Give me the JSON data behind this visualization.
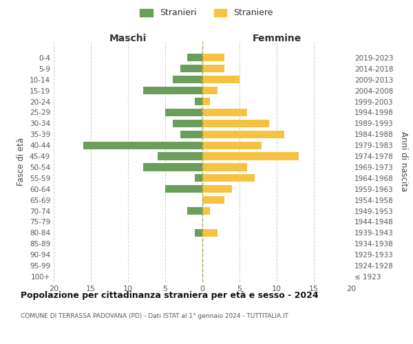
{
  "age_groups": [
    "100+",
    "95-99",
    "90-94",
    "85-89",
    "80-84",
    "75-79",
    "70-74",
    "65-69",
    "60-64",
    "55-59",
    "50-54",
    "45-49",
    "40-44",
    "35-39",
    "30-34",
    "25-29",
    "20-24",
    "15-19",
    "10-14",
    "5-9",
    "0-4"
  ],
  "birth_years": [
    "≤ 1923",
    "1924-1928",
    "1929-1933",
    "1934-1938",
    "1939-1943",
    "1944-1948",
    "1949-1953",
    "1954-1958",
    "1959-1963",
    "1964-1968",
    "1969-1973",
    "1974-1978",
    "1979-1983",
    "1984-1988",
    "1989-1993",
    "1994-1998",
    "1999-2003",
    "2004-2008",
    "2009-2013",
    "2014-2018",
    "2019-2023"
  ],
  "males": [
    0,
    0,
    0,
    0,
    1,
    0,
    2,
    0,
    5,
    1,
    8,
    6,
    16,
    3,
    4,
    5,
    1,
    8,
    4,
    3,
    2
  ],
  "females": [
    0,
    0,
    0,
    0,
    2,
    0,
    1,
    3,
    4,
    7,
    6,
    13,
    8,
    11,
    9,
    6,
    1,
    2,
    5,
    3,
    3
  ],
  "male_color": "#6a9e5a",
  "female_color": "#f5c242",
  "title": "Popolazione per cittadinanza straniera per età e sesso - 2024",
  "subtitle": "COMUNE DI TERRASSA PADOVANA (PD) - Dati ISTAT al 1° gennaio 2024 - TUTTITALIA.IT",
  "xlabel_left": "Maschi",
  "xlabel_right": "Femmine",
  "ylabel_left": "Fasce di età",
  "ylabel_right": "Anni di nascita",
  "legend_male": "Stranieri",
  "legend_female": "Straniere",
  "xlim": 20,
  "background_color": "#ffffff",
  "grid_color": "#cccccc"
}
